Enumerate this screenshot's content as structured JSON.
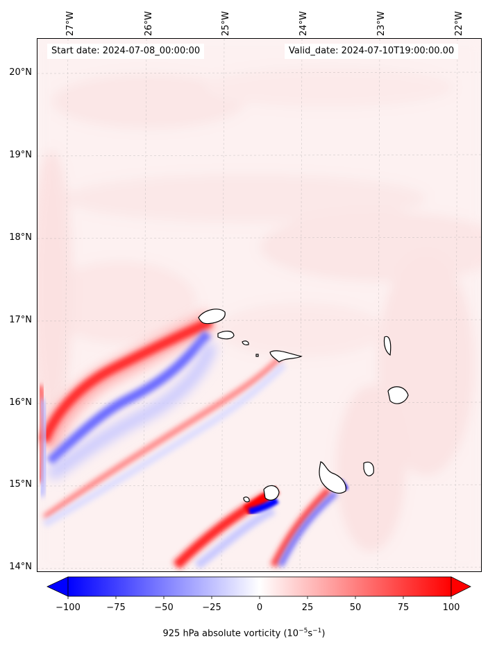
{
  "map": {
    "start_date": "Start date: 2024-07-08_00:00:00",
    "valid_date": "Valid_date: 2024-07-10T19:00:00.00",
    "longitude_labels": [
      "27°W",
      "26°W",
      "25°W",
      "24°W",
      "23°W",
      "22°W"
    ],
    "latitude_labels": [
      "20°N",
      "19°N",
      "18°N",
      "17°N",
      "16°N",
      "15°N",
      "14°N"
    ],
    "gridlines": true
  },
  "colorbar": {
    "ticks": [
      "−100",
      "−75",
      "−50",
      "−25",
      "0",
      "25",
      "50",
      "75",
      "100"
    ],
    "label_prefix": "925 hPa absolute vorticity (10",
    "label_exp1": "−5",
    "label_mid": "s",
    "label_exp2": "−1",
    "label_suffix": ")",
    "min": -100,
    "max": 100,
    "colors": {
      "negative": "#0000ff",
      "zero": "#ffffff",
      "positive": "#ff0000"
    }
  }
}
